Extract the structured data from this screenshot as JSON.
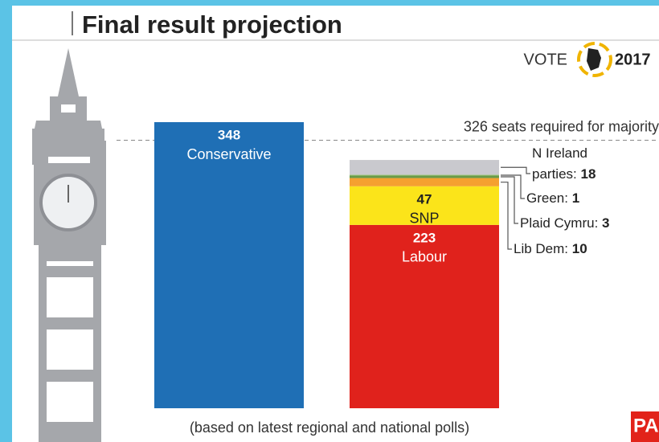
{
  "chart_data": {
    "type": "stacked_bar",
    "title": "Final result projection",
    "logo_text": "VOTE",
    "logo_year": "2017",
    "majority": {
      "value": 326,
      "label": "326 seats required for majority"
    },
    "note": "(based on latest regional and national polls)",
    "source": "PA",
    "categories": [
      null,
      null
    ],
    "series": [
      {
        "name": "Conservative",
        "color": "#1f6fb5",
        "values": [
          348,
          null
        ]
      },
      {
        "name": "Labour",
        "color": "#e0221c",
        "values": [
          null,
          223
        ]
      },
      {
        "name": "SNP",
        "color": "#fbe41a",
        "values": [
          null,
          47
        ]
      },
      {
        "name": "Lib Dem:",
        "color": "#f5a030",
        "values": [
          null,
          10
        ]
      },
      {
        "name": "Plaid Cymru:",
        "color": "#6a9a48",
        "values": [
          null,
          3
        ]
      },
      {
        "name": "Green:",
        "color": "#9fc67d",
        "values": [
          null,
          1
        ]
      },
      {
        "name": "N Ireland parties:",
        "color": "#c9c9ce",
        "values": [
          null,
          18
        ]
      }
    ]
  }
}
